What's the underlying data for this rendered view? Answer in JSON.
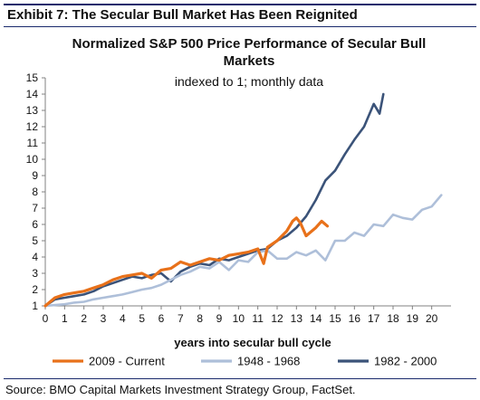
{
  "header": {
    "exhibit_title": "Exhibit 7: The Secular Bull Market Has Been Reignited"
  },
  "footer": {
    "source": "Source: BMO Capital Markets Investment Strategy Group, FactSet."
  },
  "colors": {
    "border": "#1a2a6c",
    "axis": "#808080"
  },
  "chart_data": {
    "type": "line",
    "title_line1": "Normalized S&P 500 Price Performance of  Secular Bull",
    "title_line2": "Markets",
    "subtitle": "indexed to 1; monthly data",
    "xlabel": "years into secular bull cycle",
    "ylabel": "",
    "xlim": [
      0,
      21
    ],
    "ylim": [
      1,
      15
    ],
    "xticks": [
      0,
      1,
      2,
      3,
      4,
      5,
      6,
      7,
      8,
      9,
      10,
      11,
      12,
      13,
      14,
      15,
      16,
      17,
      18,
      19,
      20
    ],
    "yticks": [
      1,
      2,
      3,
      4,
      5,
      6,
      7,
      8,
      9,
      10,
      11,
      12,
      13,
      14,
      15
    ],
    "grid": false,
    "legend_position": "bottom",
    "series": [
      {
        "name": "2009 - Current",
        "color": "#e8711a",
        "x": [
          0,
          0.5,
          1,
          1.5,
          2,
          2.5,
          3,
          3.5,
          4,
          4.5,
          5,
          5.5,
          6,
          6.5,
          7,
          7.5,
          8,
          8.5,
          9,
          9.5,
          10,
          10.5,
          11,
          11.3,
          11.5,
          12,
          12.5,
          12.8,
          13,
          13.2,
          13.5,
          14,
          14.3,
          14.6
        ],
        "y": [
          1.0,
          1.5,
          1.7,
          1.8,
          1.9,
          2.1,
          2.3,
          2.6,
          2.8,
          2.9,
          3.0,
          2.7,
          3.2,
          3.3,
          3.7,
          3.5,
          3.7,
          3.9,
          3.8,
          4.1,
          4.2,
          4.3,
          4.5,
          3.6,
          4.6,
          5.0,
          5.6,
          6.2,
          6.4,
          6.1,
          5.3,
          5.8,
          6.2,
          5.9
        ]
      },
      {
        "name": "1948 - 1968",
        "color": "#aebfd9",
        "x": [
          0,
          0.5,
          1,
          1.5,
          2,
          2.5,
          3,
          3.5,
          4,
          4.5,
          5,
          5.5,
          6,
          6.5,
          7,
          7.5,
          8,
          8.5,
          9,
          9.5,
          10,
          10.5,
          11,
          11.5,
          12,
          12.5,
          13,
          13.5,
          14,
          14.5,
          15,
          15.5,
          16,
          16.5,
          17,
          17.5,
          18,
          18.5,
          19,
          19.5,
          20,
          20.5
        ],
        "y": [
          1.0,
          1.05,
          1.1,
          1.2,
          1.25,
          1.4,
          1.5,
          1.6,
          1.7,
          1.85,
          2.0,
          2.1,
          2.3,
          2.6,
          2.9,
          3.1,
          3.4,
          3.3,
          3.7,
          3.2,
          3.8,
          3.7,
          4.3,
          4.4,
          3.9,
          3.9,
          4.3,
          4.1,
          4.4,
          3.8,
          5.0,
          5.0,
          5.5,
          5.3,
          6.0,
          5.9,
          6.6,
          6.4,
          6.3,
          6.9,
          7.1,
          7.8
        ]
      },
      {
        "name": "1982 - 2000",
        "color": "#3b5379",
        "x": [
          0,
          0.5,
          1,
          1.5,
          2,
          2.5,
          3,
          3.5,
          4,
          4.5,
          5,
          5.5,
          6,
          6.5,
          7,
          7.5,
          8,
          8.5,
          9,
          9.5,
          10,
          10.5,
          11,
          11.5,
          12,
          12.5,
          13,
          13.5,
          14,
          14.5,
          15,
          15.5,
          16,
          16.5,
          17,
          17.3,
          17.5
        ],
        "y": [
          1.0,
          1.4,
          1.5,
          1.6,
          1.7,
          1.9,
          2.2,
          2.4,
          2.6,
          2.8,
          2.7,
          2.9,
          3.0,
          2.5,
          3.1,
          3.4,
          3.6,
          3.5,
          3.9,
          3.8,
          4.0,
          4.2,
          4.4,
          4.5,
          5.0,
          5.3,
          5.8,
          6.5,
          7.5,
          8.7,
          9.3,
          10.3,
          11.2,
          12.0,
          13.4,
          12.8,
          14.0
        ]
      }
    ]
  }
}
